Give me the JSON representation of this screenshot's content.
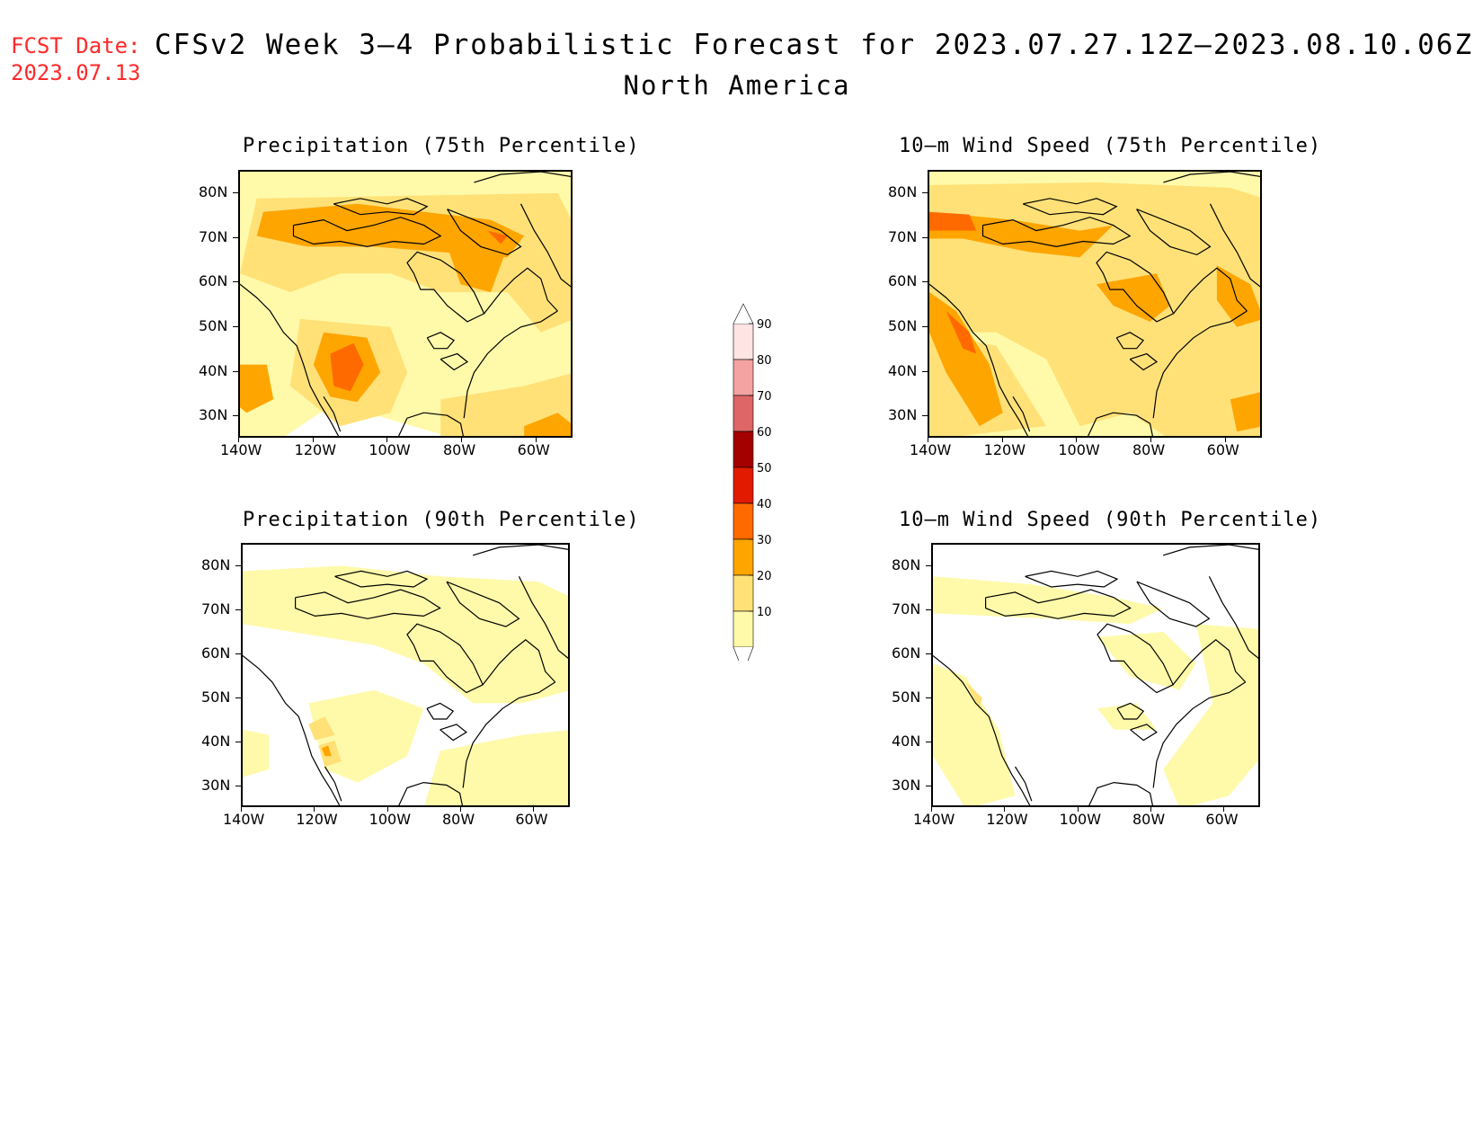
{
  "header": {
    "fcst_label": "FCST Date:",
    "fcst_date": "2023.07.13",
    "title": "CFSv2 Week 3–4 Probabilistic Forecast for 2023.07.27.12Z–2023.08.10.06Z",
    "subtitle": "North America"
  },
  "axes": {
    "lat_labels": [
      "80N",
      "70N",
      "60N",
      "50N",
      "40N",
      "30N"
    ],
    "lon_labels": [
      "140W",
      "120W",
      "100W",
      "80W",
      "60W"
    ]
  },
  "panels": [
    {
      "id": "precip75",
      "title": "Precipitation (75th Percentile)",
      "intensity": "high"
    },
    {
      "id": "wind75",
      "title": "10–m Wind Speed (75th Percentile)",
      "intensity": "high"
    },
    {
      "id": "precip90",
      "title": "Precipitation (90th Percentile)",
      "intensity": "low"
    },
    {
      "id": "wind90",
      "title": "10–m Wind Speed (90th Percentile)",
      "intensity": "low"
    }
  ],
  "colorbar": {
    "levels": [
      "10",
      "20",
      "30",
      "40",
      "50",
      "60",
      "70",
      "80",
      "90"
    ],
    "colors": [
      "#fffaaa",
      "#ffe178",
      "#ffa500",
      "#ff6a00",
      "#e21a00",
      "#a50000",
      "#de6666",
      "#f4a2a2",
      "#ffe4e4"
    ]
  }
}
